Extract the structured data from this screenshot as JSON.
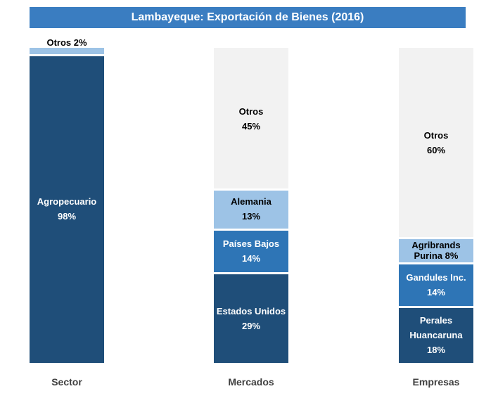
{
  "chart_data": {
    "type": "stacked100",
    "title": "Lambayeque: Exportación de Bienes (2016)",
    "title_color": "#3a7dc1",
    "categories": [
      "Sector",
      "Mercados",
      "Empresas"
    ],
    "stacks": [
      {
        "names": [
          "Agropecuario",
          "Otros"
        ],
        "values": [
          98,
          2
        ],
        "value_labels": [
          "98%",
          "2%"
        ],
        "colors": [
          "#1f4e79",
          "#9dc3e6"
        ]
      },
      {
        "names": [
          "Estados Unidos",
          "Países Bajos",
          "Alemania",
          "Otros"
        ],
        "values": [
          29,
          14,
          13,
          45
        ],
        "value_labels": [
          "29%",
          "14%",
          "13%",
          "45%"
        ],
        "colors": [
          "#1f4e79",
          "#2e75b6",
          "#9dc3e6",
          "#f2f2f2"
        ]
      },
      {
        "names": [
          "Perales Huancaruna",
          "Gandules Inc.",
          "Agribrands Purina",
          "Otros"
        ],
        "values": [
          18,
          14,
          8,
          60
        ],
        "value_labels": [
          "18%",
          "14%",
          "8%",
          "60%"
        ],
        "colors": [
          "#1f4e79",
          "#2e75b6",
          "#9dc3e6",
          "#f2f2f2"
        ]
      }
    ]
  }
}
